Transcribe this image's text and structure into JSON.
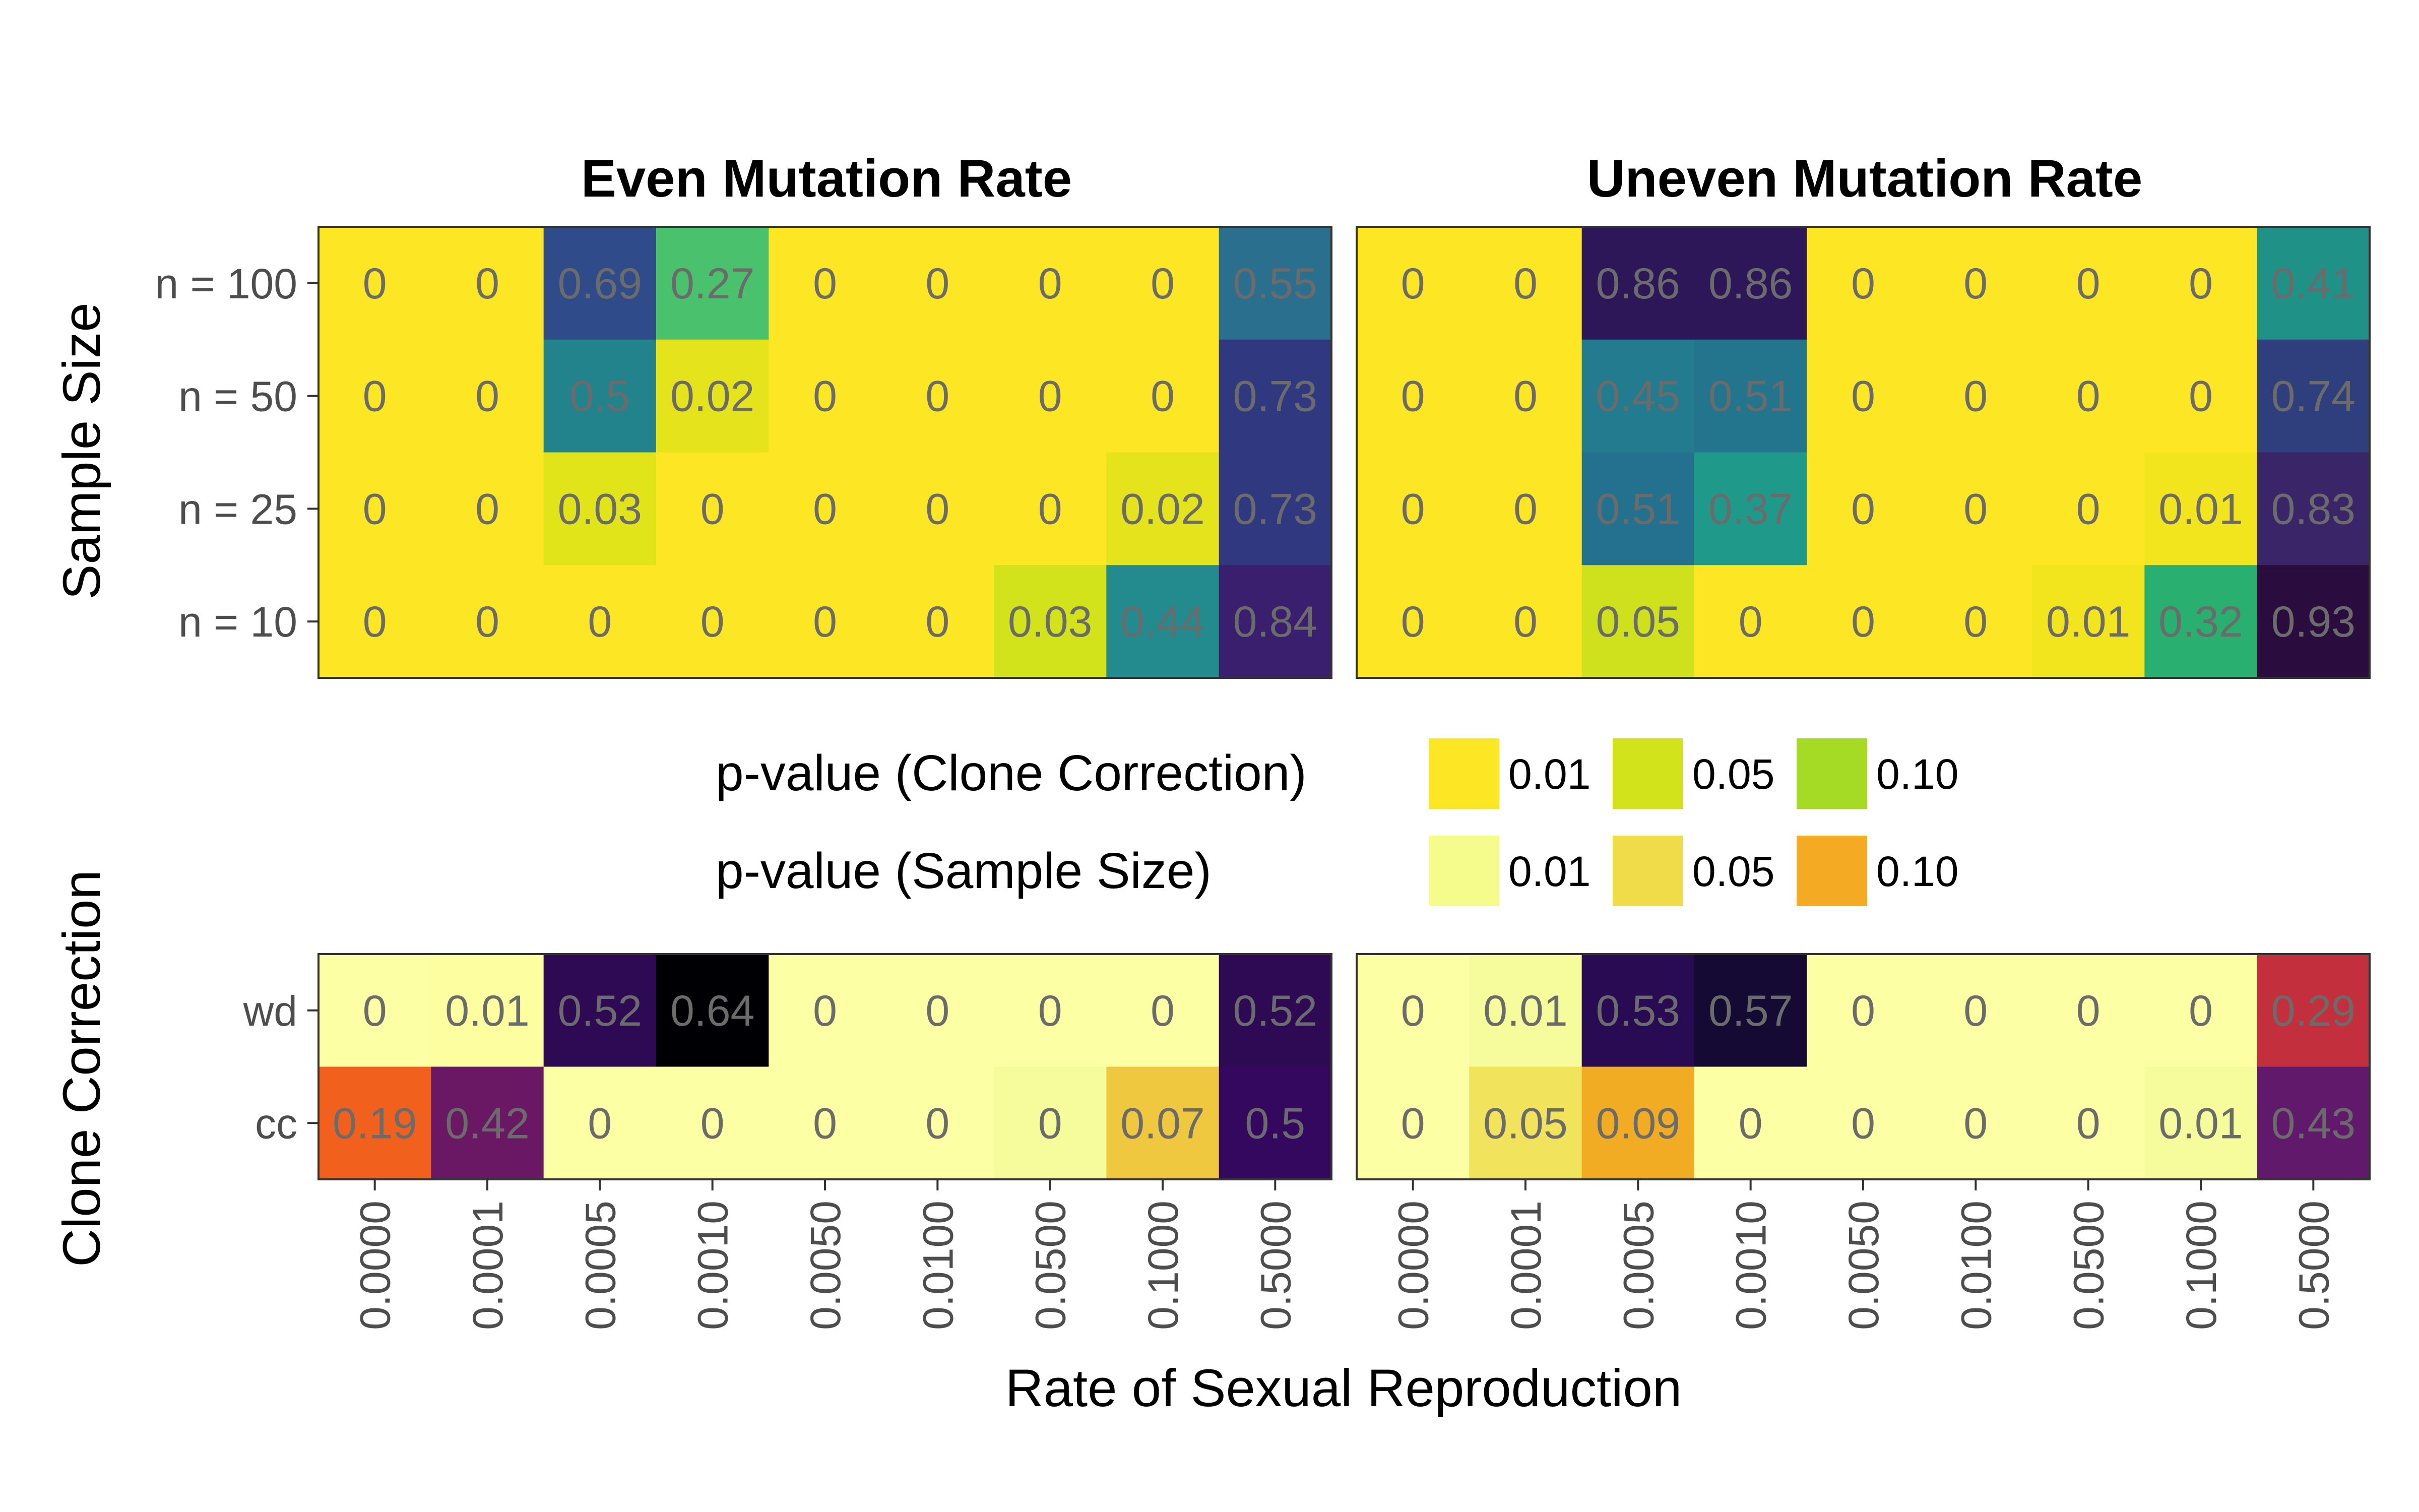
{
  "chart_data": [
    {
      "type": "heatmap",
      "facet_title": "Even Mutation Rate",
      "ylabel": "Sample Size",
      "x": [
        "0.0000",
        "0.0001",
        "0.0005",
        "0.0010",
        "0.0050",
        "0.0100",
        "0.0500",
        "0.1000",
        "0.5000"
      ],
      "y": [
        "n = 100",
        "n = 50",
        "n = 25",
        "n = 10"
      ],
      "values": [
        [
          0,
          0,
          0.69,
          0.27,
          0,
          0,
          0,
          0,
          0.55
        ],
        [
          0,
          0,
          0.5,
          0.02,
          0,
          0,
          0,
          0,
          0.73
        ],
        [
          0,
          0,
          0.03,
          0,
          0,
          0,
          0,
          0.02,
          0.73
        ],
        [
          0,
          0,
          0,
          0,
          0,
          0,
          0.03,
          0.44,
          0.84
        ]
      ],
      "labels": [
        [
          "0",
          "0",
          "0.69",
          "0.27",
          "0",
          "0",
          "0",
          "0",
          "0.55"
        ],
        [
          "0",
          "0",
          "0.5",
          "0.02",
          "0",
          "0",
          "0",
          "0",
          "0.73"
        ],
        [
          "0",
          "0",
          "0.03",
          "0",
          "0",
          "0",
          "0",
          "0.02",
          "0.73"
        ],
        [
          "0",
          "0",
          "0",
          "0",
          "0",
          "0",
          "0.03",
          "0.44",
          "0.84"
        ]
      ],
      "fills": [
        [
          "#FDE725",
          "#FDE725",
          "#2F4B8A",
          "#4AC16D",
          "#FDE725",
          "#FDE725",
          "#FDE725",
          "#FDE725",
          "#2A6F8E"
        ],
        [
          "#FDE725",
          "#FDE725",
          "#22838D",
          "#E5E31C",
          "#FDE725",
          "#FDE725",
          "#FDE725",
          "#FDE725",
          "#30397F"
        ],
        [
          "#FDE725",
          "#FDE725",
          "#E2E41A",
          "#FDE725",
          "#FDE725",
          "#FDE725",
          "#FDE725",
          "#E5E31C",
          "#30397F"
        ],
        [
          "#FDE725",
          "#FDE725",
          "#FDE725",
          "#FDE725",
          "#FDE725",
          "#FDE725",
          "#D2E21B",
          "#238A8D",
          "#3A1F6E"
        ]
      ]
    },
    {
      "type": "heatmap",
      "facet_title": "Uneven Mutation Rate",
      "x": [
        "0.0000",
        "0.0001",
        "0.0005",
        "0.0010",
        "0.0050",
        "0.0100",
        "0.0500",
        "0.1000",
        "0.5000"
      ],
      "y": [
        "n = 100",
        "n = 50",
        "n = 25",
        "n = 10"
      ],
      "values": [
        [
          0,
          0,
          0.86,
          0.86,
          0,
          0,
          0,
          0,
          0.41
        ],
        [
          0,
          0,
          0.45,
          0.51,
          0,
          0,
          0,
          0,
          0.74
        ],
        [
          0,
          0,
          0.51,
          0.37,
          0,
          0,
          0,
          0.01,
          0.83
        ],
        [
          0,
          0,
          0.05,
          0,
          0,
          0,
          0.01,
          0.32,
          0.93
        ]
      ],
      "labels": [
        [
          "0",
          "0",
          "0.86",
          "0.86",
          "0",
          "0",
          "0",
          "0",
          "0.41"
        ],
        [
          "0",
          "0",
          "0.45",
          "0.51",
          "0",
          "0",
          "0",
          "0",
          "0.74"
        ],
        [
          "0",
          "0",
          "0.51",
          "0.37",
          "0",
          "0",
          "0",
          "0.01",
          "0.83"
        ],
        [
          "0",
          "0",
          "0.05",
          "0",
          "0",
          "0",
          "0.01",
          "0.32",
          "0.93"
        ]
      ],
      "fills": [
        [
          "#FDE725",
          "#FDE725",
          "#2D1758",
          "#2D1758",
          "#FDE725",
          "#FDE725",
          "#FDE725",
          "#FDE725",
          "#1F9186"
        ],
        [
          "#FDE725",
          "#FDE725",
          "#227B8E",
          "#23758E",
          "#FDE725",
          "#FDE725",
          "#FDE725",
          "#FDE725",
          "#2F3E7C"
        ],
        [
          "#FDE725",
          "#FDE725",
          "#23718E",
          "#1F998A",
          "#FDE725",
          "#FDE725",
          "#FDE725",
          "#F2E51D",
          "#3A2569"
        ],
        [
          "#FDE725",
          "#FDE725",
          "#CFE11C",
          "#FDE725",
          "#FDE725",
          "#FDE725",
          "#F2E51D",
          "#29AF6F",
          "#2A0C3E"
        ]
      ]
    },
    {
      "type": "heatmap",
      "ylabel": "Clone Correction",
      "xlabel": "Rate of Sexual Reproduction",
      "x": [
        "0.0000",
        "0.0001",
        "0.0005",
        "0.0010",
        "0.0050",
        "0.0100",
        "0.0500",
        "0.1000",
        "0.5000"
      ],
      "y": [
        "wd",
        "cc"
      ],
      "values": [
        [
          0,
          0.01,
          0.52,
          0.64,
          0,
          0,
          0,
          0,
          0.52
        ],
        [
          0.19,
          0.42,
          0,
          0,
          0,
          0,
          0,
          0.07,
          0.5
        ]
      ],
      "labels": [
        [
          "0",
          "0.01",
          "0.52",
          "0.64",
          "0",
          "0",
          "0",
          "0",
          "0.52"
        ],
        [
          "0.19",
          "0.42",
          "0",
          "0",
          "0",
          "0",
          "0",
          "0.07",
          "0.5"
        ]
      ],
      "fills": [
        [
          "#FCFFA4",
          "#FCFEA0",
          "#2E0A55",
          "#000004",
          "#FCFFA4",
          "#FCFFA4",
          "#FCFFA4",
          "#FCFFA4",
          "#2E0A55"
        ],
        [
          "#F1601C",
          "#6A1764",
          "#FCFFA4",
          "#FCFFA4",
          "#FCFFA4",
          "#FCFFA4",
          "#F6FC9C",
          "#EFC83F",
          "#35085F"
        ]
      ]
    },
    {
      "type": "heatmap",
      "x": [
        "0.0000",
        "0.0001",
        "0.0005",
        "0.0010",
        "0.0050",
        "0.0100",
        "0.0500",
        "0.1000",
        "0.5000"
      ],
      "y": [
        "wd",
        "cc"
      ],
      "values": [
        [
          0,
          0.01,
          0.53,
          0.57,
          0,
          0,
          0,
          0,
          0.29
        ],
        [
          0,
          0.05,
          0.09,
          0,
          0,
          0,
          0,
          0.01,
          0.43
        ]
      ],
      "labels": [
        [
          "0",
          "0.01",
          "0.53",
          "0.57",
          "0",
          "0",
          "0",
          "0",
          "0.29"
        ],
        [
          "0",
          "0.05",
          "0.09",
          "0",
          "0",
          "0",
          "0",
          "0.01",
          "0.43"
        ]
      ],
      "fills": [
        [
          "#FCFFA4",
          "#F6FC9C",
          "#290B54",
          "#150A33",
          "#FCFFA4",
          "#FCFFA4",
          "#FCFFA4",
          "#FCFFA4",
          "#C42F3E"
        ],
        [
          "#FCFFA4",
          "#F1E35C",
          "#F1AC24",
          "#FCFFA4",
          "#FCFFA4",
          "#FCFFA4",
          "#FCFFA4",
          "#F6FC9C",
          "#611A6B"
        ]
      ]
    }
  ],
  "legend": {
    "clone": {
      "title": "p-value (Clone Correction)",
      "items": [
        {
          "label": "0.01",
          "color": "#FDE725"
        },
        {
          "label": "0.05",
          "color": "#D2E21B"
        },
        {
          "label": "0.10",
          "color": "#A5DB24"
        }
      ]
    },
    "sample": {
      "title": "p-value (Sample Size)",
      "items": [
        {
          "label": "0.01",
          "color": "#F6FC8C"
        },
        {
          "label": "0.05",
          "color": "#F0DC48"
        },
        {
          "label": "0.10",
          "color": "#F5AA24"
        }
      ]
    }
  }
}
